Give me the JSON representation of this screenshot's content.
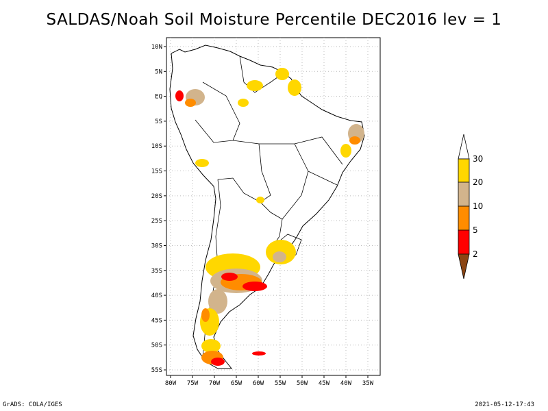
{
  "title": "SALDAS/Noah Soil Moisture Percentile DEC2016 lev = 1",
  "footer": {
    "left": "GrADS: COLA/IGES",
    "right": "2021-05-12-17:43"
  },
  "map": {
    "lat_labels": [
      "10N",
      "5N",
      "EQ",
      "5S",
      "10S",
      "15S",
      "20S",
      "25S",
      "30S",
      "35S",
      "40S",
      "45S",
      "50S",
      "55S"
    ],
    "lon_labels": [
      "80W",
      "75W",
      "70W",
      "65W",
      "60W",
      "55W",
      "50W",
      "45W",
      "40W",
      "35W"
    ],
    "lat_range": [
      -56,
      11
    ],
    "lon_range": [
      -81,
      -34
    ],
    "grid": true
  },
  "colorbar": {
    "labels": [
      "30",
      "20",
      "10",
      "5",
      "2"
    ],
    "colors": {
      "above30": "#ffffff",
      "c20_30": "#ffd700",
      "c10_20": "#d2b48c",
      "c5_10": "#ff8c00",
      "c2_5": "#ff0000",
      "below2": "#8b4513"
    }
  }
}
